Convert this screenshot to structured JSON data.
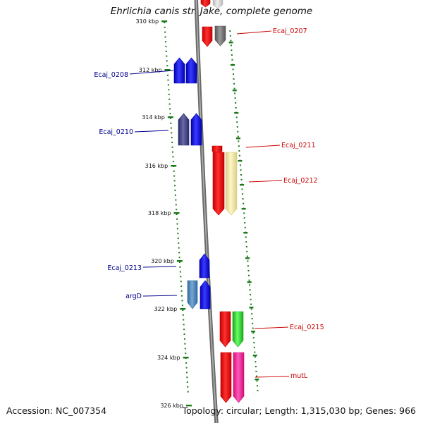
{
  "title": "Ehrlichia canis str. Jake, complete genome",
  "footer": {
    "accession": "Accession: NC_007354",
    "summary": "Topology: circular; Length: 1,315,030 bp; Genes: 966"
  },
  "colors": {
    "forward_label": "#00008b",
    "reverse_label": "#cc0000",
    "backbone": "#8a8a8a",
    "ticks": "#1a7a1a"
  },
  "ticks": [
    {
      "label": "310 kbp"
    },
    {
      "label": "312 kbp"
    },
    {
      "label": "314 kbp"
    },
    {
      "label": "316 kbp"
    },
    {
      "label": "318 kbp"
    },
    {
      "label": "320 kbp"
    },
    {
      "label": "322 kbp"
    },
    {
      "label": "324 kbp"
    },
    {
      "label": "326 kbp"
    }
  ],
  "genes": [
    {
      "name": "Ecaj_0207",
      "strand": "reverse"
    },
    {
      "name": "Ecaj_0208",
      "strand": "forward"
    },
    {
      "name": "Ecaj_0210",
      "strand": "forward"
    },
    {
      "name": "Ecaj_0211",
      "strand": "reverse"
    },
    {
      "name": "Ecaj_0212",
      "strand": "reverse"
    },
    {
      "name": "Ecaj_0213",
      "strand": "forward"
    },
    {
      "name": "argD",
      "strand": "forward"
    },
    {
      "name": "Ecaj_0215",
      "strand": "reverse"
    },
    {
      "name": "mutL",
      "strand": "reverse"
    }
  ]
}
